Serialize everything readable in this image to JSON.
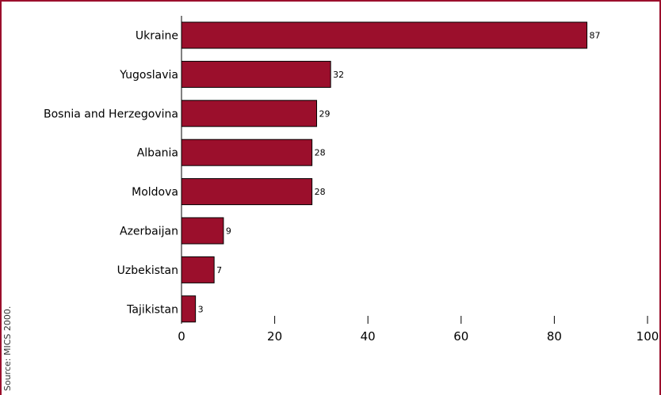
{
  "source_note": "Source: MICS 2000.",
  "colors": {
    "frame": "#9b0f2c",
    "bar_fill": "#9b0f2c",
    "bar_stroke": "#000000",
    "axis": "#000000",
    "text": "#000000"
  },
  "chart_data": {
    "type": "bar",
    "orientation": "horizontal",
    "title": "",
    "xlabel": "",
    "ylabel": "",
    "categories": [
      "Ukraine",
      "Yugoslavia",
      "Bosnia and Herzegovina",
      "Albania",
      "Moldova",
      "Azerbaijan",
      "Uzbekistan",
      "Tajikistan"
    ],
    "values": [
      87,
      32,
      29,
      28,
      28,
      9,
      7,
      3
    ],
    "data_labels": [
      "87",
      "32",
      "29",
      "28",
      "28",
      "9",
      "7",
      "3"
    ],
    "xlim": [
      0,
      100
    ],
    "x_ticks": [
      0,
      20,
      40,
      60,
      80,
      100
    ],
    "x_tick_labels": [
      "0",
      "20",
      "40",
      "60",
      "80",
      "100"
    ],
    "grid": false,
    "legend": "none"
  }
}
